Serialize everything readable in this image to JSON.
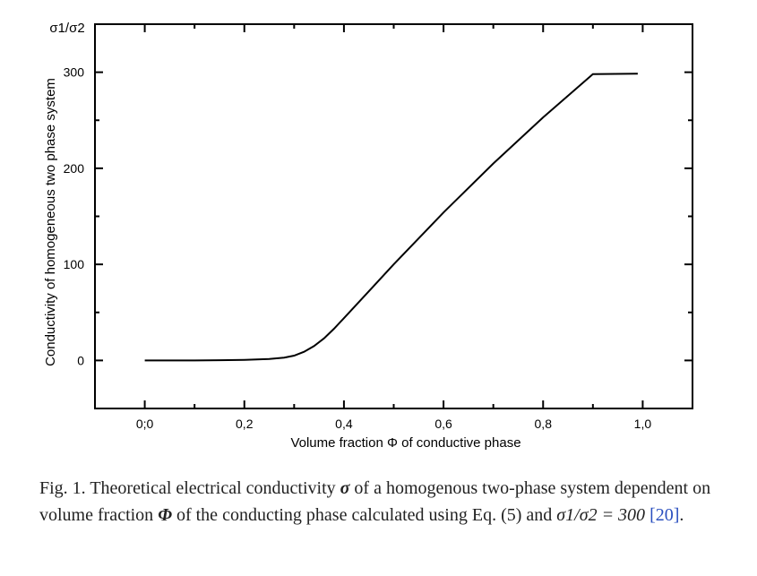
{
  "chart_data": {
    "type": "line",
    "title": "",
    "xlabel": "Volume fraction Φ of conductive phase",
    "ylabel": "Conductivity of homogeneous two phase system",
    "ylabel_top": "σ1/σ2",
    "xlim": [
      -0.1,
      1.1
    ],
    "ylim": [
      -50,
      350
    ],
    "xticks": [
      0.0,
      0.2,
      0.4,
      0.6,
      0.8,
      1.0
    ],
    "xtick_labels": [
      "0;0",
      "0,2",
      "0,4",
      "0,6",
      "0,8",
      "1,0"
    ],
    "yticks": [
      0,
      100,
      200,
      300
    ],
    "ytick_labels": [
      "0",
      "100",
      "200",
      "300"
    ],
    "grid": false,
    "series": [
      {
        "x": [
          0.0,
          0.05,
          0.1,
          0.15,
          0.2,
          0.25,
          0.28,
          0.3,
          0.32,
          0.34,
          0.36,
          0.38,
          0.4,
          0.45,
          0.5,
          0.6,
          0.7,
          0.8,
          0.9,
          0.99
        ],
        "y": [
          0,
          0,
          0,
          0.3,
          0.6,
          1.5,
          3,
          5,
          9,
          15,
          23,
          33,
          44,
          72,
          100,
          154,
          205,
          253,
          298,
          298.5
        ],
        "color": "#000000"
      }
    ]
  },
  "caption": {
    "prefix": "Fig. 1. Theoretical electrical conductivity",
    "sym_sigma": "σ",
    "part2": "of a homogenous two-phase system dependent on volume fraction",
    "sym_phi": "Φ",
    "part3": "of the conducting phase calculated using Eq. (5) and",
    "sym_ratio": "σ1/σ2 = 300",
    "ref": "[20]",
    "end": "."
  }
}
